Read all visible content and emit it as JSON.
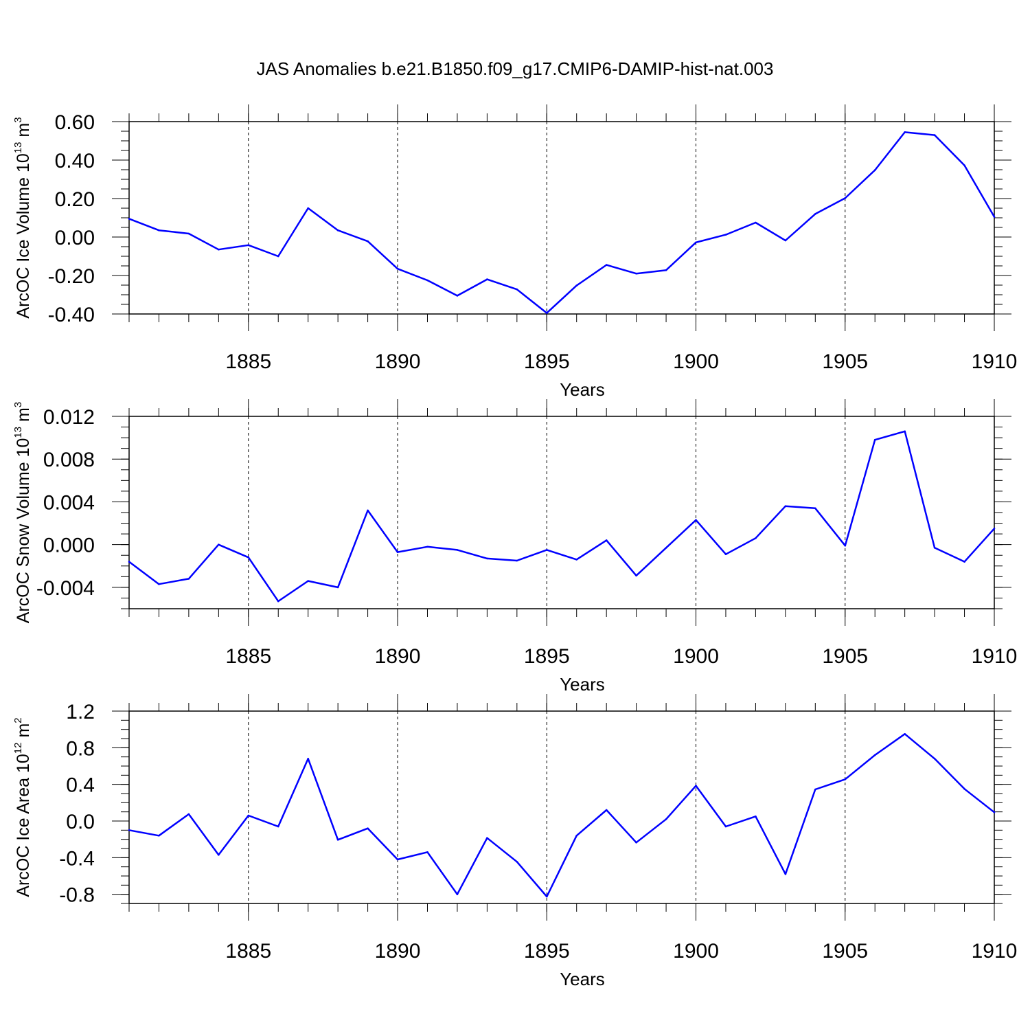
{
  "colors": {
    "series": "#0000ff",
    "axis": "#000000",
    "grid": "#000000",
    "background": "#ffffff"
  },
  "chart_data": {
    "title": "JAS Anomalies b.e21.B1850.f09_g17.CMIP6-DAMIP-hist-nat.003",
    "panels": [
      {
        "type": "line",
        "ylabel": {
          "prefix": "ArcOC Ice Volume 10",
          "exponent": "13",
          "unit": " m",
          "unit_exponent": "3"
        },
        "xlabel": "Years",
        "xlim": [
          1881,
          1910
        ],
        "ylim": [
          -0.4,
          0.6
        ],
        "xticks": [
          "1885",
          "1890",
          "1895",
          "1900",
          "1905",
          "1910"
        ],
        "yticks": [
          {
            "value": 0.6,
            "label": "0.60"
          },
          {
            "value": 0.4,
            "label": "0.40"
          },
          {
            "value": 0.2,
            "label": "0.20"
          },
          {
            "value": 0.0,
            "label": "0.00"
          },
          {
            "value": -0.2,
            "label": "-0.20"
          },
          {
            "value": -0.4,
            "label": "-0.40"
          }
        ],
        "minor_ystep": 0.05,
        "x": [
          1881,
          1882,
          1883,
          1884,
          1885,
          1886,
          1887,
          1888,
          1889,
          1890,
          1891,
          1892,
          1893,
          1894,
          1895,
          1896,
          1897,
          1898,
          1899,
          1900,
          1901,
          1902,
          1903,
          1904,
          1905,
          1906,
          1907,
          1908,
          1909,
          1910
        ],
        "values": [
          0.095,
          0.035,
          0.018,
          -0.065,
          -0.042,
          -0.1,
          0.15,
          0.035,
          -0.022,
          -0.165,
          -0.225,
          -0.305,
          -0.22,
          -0.272,
          -0.395,
          -0.252,
          -0.145,
          -0.19,
          -0.172,
          -0.028,
          0.012,
          0.075,
          -0.018,
          0.12,
          0.202,
          0.348,
          0.545,
          0.53,
          0.372,
          0.105
        ]
      },
      {
        "type": "line",
        "ylabel": {
          "prefix": "ArcOC Snow Volume 10",
          "exponent": "13",
          "unit": " m",
          "unit_exponent": "3"
        },
        "xlabel": "Years",
        "xlim": [
          1881,
          1910
        ],
        "ylim": [
          -0.006,
          0.012
        ],
        "xticks": [
          "1885",
          "1890",
          "1895",
          "1900",
          "1905",
          "1910"
        ],
        "yticks": [
          {
            "value": 0.012,
            "label": "0.012"
          },
          {
            "value": 0.008,
            "label": "0.008"
          },
          {
            "value": 0.004,
            "label": "0.004"
          },
          {
            "value": 0.0,
            "label": "0.000"
          },
          {
            "value": -0.004,
            "label": "-0.004"
          }
        ],
        "minor_ystep": 0.001,
        "x": [
          1881,
          1882,
          1883,
          1884,
          1885,
          1886,
          1887,
          1888,
          1889,
          1890,
          1891,
          1892,
          1893,
          1894,
          1895,
          1896,
          1897,
          1898,
          1899,
          1900,
          1901,
          1902,
          1903,
          1904,
          1905,
          1906,
          1907,
          1908,
          1909,
          1910
        ],
        "values": [
          -0.0016,
          -0.0037,
          -0.0032,
          0.0,
          -0.0012,
          -0.0053,
          -0.0034,
          -0.004,
          0.0032,
          -0.0007,
          -0.0002,
          -0.0005,
          -0.0013,
          -0.0015,
          -0.0005,
          -0.0014,
          0.0004,
          -0.0029,
          -0.0003,
          0.0023,
          -0.0009,
          0.0006,
          0.0036,
          0.0034,
          -0.0001,
          0.0098,
          0.0106,
          -0.0003,
          -0.0016,
          0.0015
        ]
      },
      {
        "type": "line",
        "ylabel": {
          "prefix": "ArcOC Ice Area 10",
          "exponent": "12",
          "unit": " m",
          "unit_exponent": "2"
        },
        "xlabel": "Years",
        "xlim": [
          1881,
          1910
        ],
        "ylim": [
          -0.9,
          1.2
        ],
        "xticks": [
          "1885",
          "1890",
          "1895",
          "1900",
          "1905",
          "1910"
        ],
        "yticks": [
          {
            "value": 1.2,
            "label": "1.2"
          },
          {
            "value": 0.8,
            "label": "0.8"
          },
          {
            "value": 0.4,
            "label": "0.4"
          },
          {
            "value": 0.0,
            "label": "0.0"
          },
          {
            "value": -0.4,
            "label": "-0.4"
          },
          {
            "value": -0.8,
            "label": "-0.8"
          }
        ],
        "minor_ystep": 0.1,
        "x": [
          1881,
          1882,
          1883,
          1884,
          1885,
          1886,
          1887,
          1888,
          1889,
          1890,
          1891,
          1892,
          1893,
          1894,
          1895,
          1896,
          1897,
          1898,
          1899,
          1900,
          1901,
          1902,
          1903,
          1904,
          1905,
          1906,
          1907,
          1908,
          1909,
          1910
        ],
        "values": [
          -0.1,
          -0.16,
          0.075,
          -0.37,
          0.06,
          -0.06,
          0.68,
          -0.205,
          -0.08,
          -0.42,
          -0.34,
          -0.8,
          -0.185,
          -0.445,
          -0.825,
          -0.16,
          0.12,
          -0.235,
          0.02,
          0.385,
          -0.06,
          0.05,
          -0.58,
          0.345,
          0.455,
          0.72,
          0.95,
          0.68,
          0.35,
          0.095
        ]
      }
    ]
  }
}
